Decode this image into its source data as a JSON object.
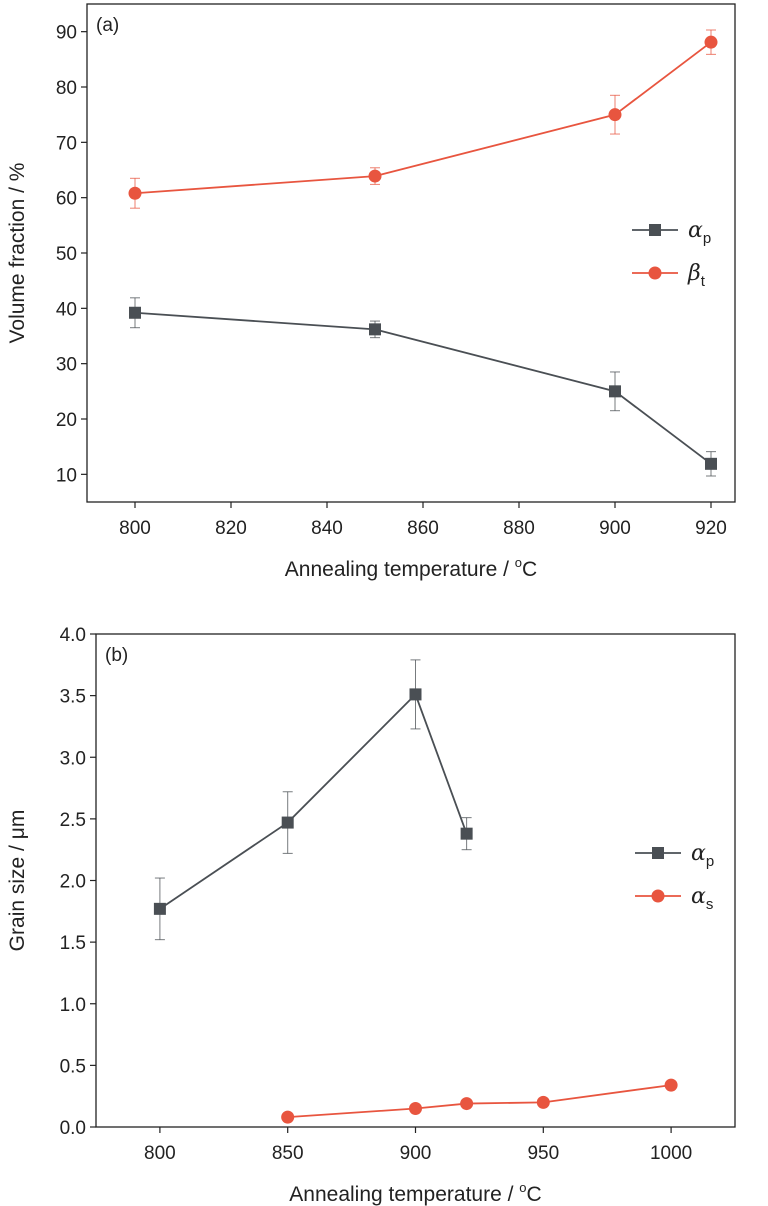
{
  "chart_data": [
    {
      "type": "line",
      "panel_label": "(a)",
      "xlabel": "Annealing temperature / ",
      "xlabel_sup": "o",
      "xlabel_tail": "C",
      "ylabel": "Volume fraction / %",
      "xlim": [
        790,
        925
      ],
      "ylim": [
        5,
        95
      ],
      "xticks": [
        800,
        820,
        840,
        860,
        880,
        900,
        920
      ],
      "yticks": [
        10,
        20,
        30,
        40,
        50,
        60,
        70,
        80,
        90
      ],
      "legend_position": "center-right",
      "series": [
        {
          "name": "α",
          "name_sub": "p",
          "color": "#4a4f54",
          "marker": "square",
          "x": [
            800,
            850,
            900,
            920
          ],
          "y": [
            39.2,
            36.2,
            25.0,
            11.9
          ],
          "err": [
            2.7,
            1.5,
            3.5,
            2.2
          ]
        },
        {
          "name": "β",
          "name_sub": "t",
          "color": "#e8553f",
          "marker": "circle",
          "x": [
            800,
            850,
            900,
            920
          ],
          "y": [
            60.8,
            63.9,
            75.0,
            88.1
          ],
          "err": [
            2.7,
            1.5,
            3.5,
            2.2
          ]
        }
      ]
    },
    {
      "type": "line",
      "panel_label": "(b)",
      "xlabel": "Annealing temperature / ",
      "xlabel_sup": "o",
      "xlabel_tail": "C",
      "ylabel": "Grain size / μm",
      "xlim": [
        775,
        1025
      ],
      "ylim": [
        0,
        4.0
      ],
      "xticks": [
        800,
        850,
        900,
        950,
        1000
      ],
      "yticks": [
        "0.0",
        "0.5",
        "1.0",
        "1.5",
        "2.0",
        "2.5",
        "3.0",
        "3.5",
        "4.0"
      ],
      "legend_position": "center-right",
      "series": [
        {
          "name": "α",
          "name_sub": "p",
          "color": "#4a4f54",
          "marker": "square",
          "x": [
            800,
            850,
            900,
            920
          ],
          "y": [
            1.77,
            2.47,
            3.51,
            2.38
          ],
          "err": [
            0.25,
            0.25,
            0.28,
            0.13
          ]
        },
        {
          "name": "α",
          "name_sub": "s",
          "color": "#e8553f",
          "marker": "circle",
          "x": [
            850,
            900,
            920,
            950,
            1000
          ],
          "y": [
            0.08,
            0.15,
            0.19,
            0.2,
            0.34
          ],
          "err": [
            0,
            0,
            0,
            0,
            0
          ]
        }
      ]
    }
  ]
}
